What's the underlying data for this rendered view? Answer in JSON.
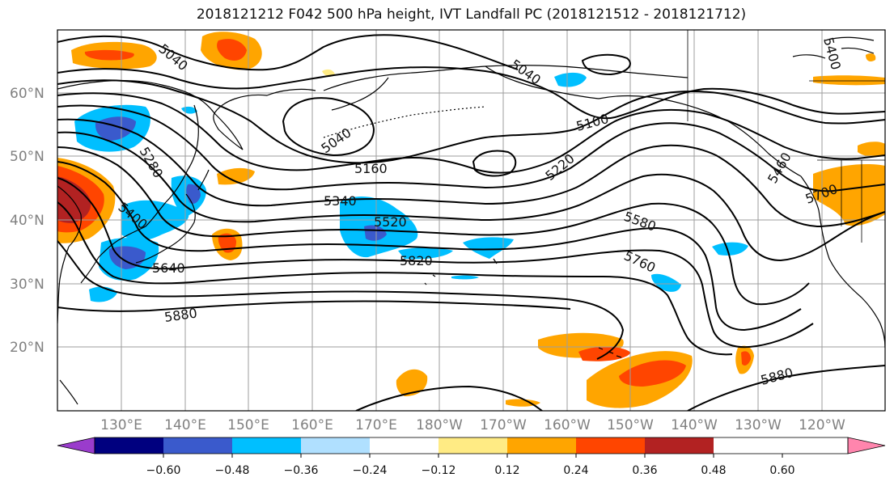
{
  "title": "2018121212 F042 500 hPa height, IVT Landfall PC (2018121512 - 2018121712)",
  "lat_labels": [
    "60°N",
    "50°N",
    "40°N",
    "30°N",
    "20°N"
  ],
  "lon_labels": [
    "130°E",
    "140°E",
    "150°E",
    "160°E",
    "170°E",
    "180°W",
    "170°W",
    "160°W",
    "150°W",
    "140°W",
    "130°W",
    "120°W"
  ],
  "contour_labels": [
    "5040",
    "5040",
    "5040",
    "5100",
    "5160",
    "5220",
    "5280",
    "5340",
    "5400",
    "5460",
    "5520",
    "5580",
    "5640",
    "5700",
    "5760",
    "5820",
    "5880",
    "5880",
    "5400"
  ],
  "colorbar": {
    "colors": [
      "#9a3ccc",
      "#00007f",
      "#3a5acc",
      "#00bfff",
      "#b0e0ff",
      "#ffffff",
      "#ffeb84",
      "#ffa500",
      "#ff4500",
      "#b22222",
      "#ff85ad"
    ],
    "tick_labels": [
      "−0.60",
      "−0.48",
      "−0.36",
      "−0.24",
      "−0.12",
      "0.12",
      "0.24",
      "0.36",
      "0.48",
      "0.60"
    ]
  }
}
